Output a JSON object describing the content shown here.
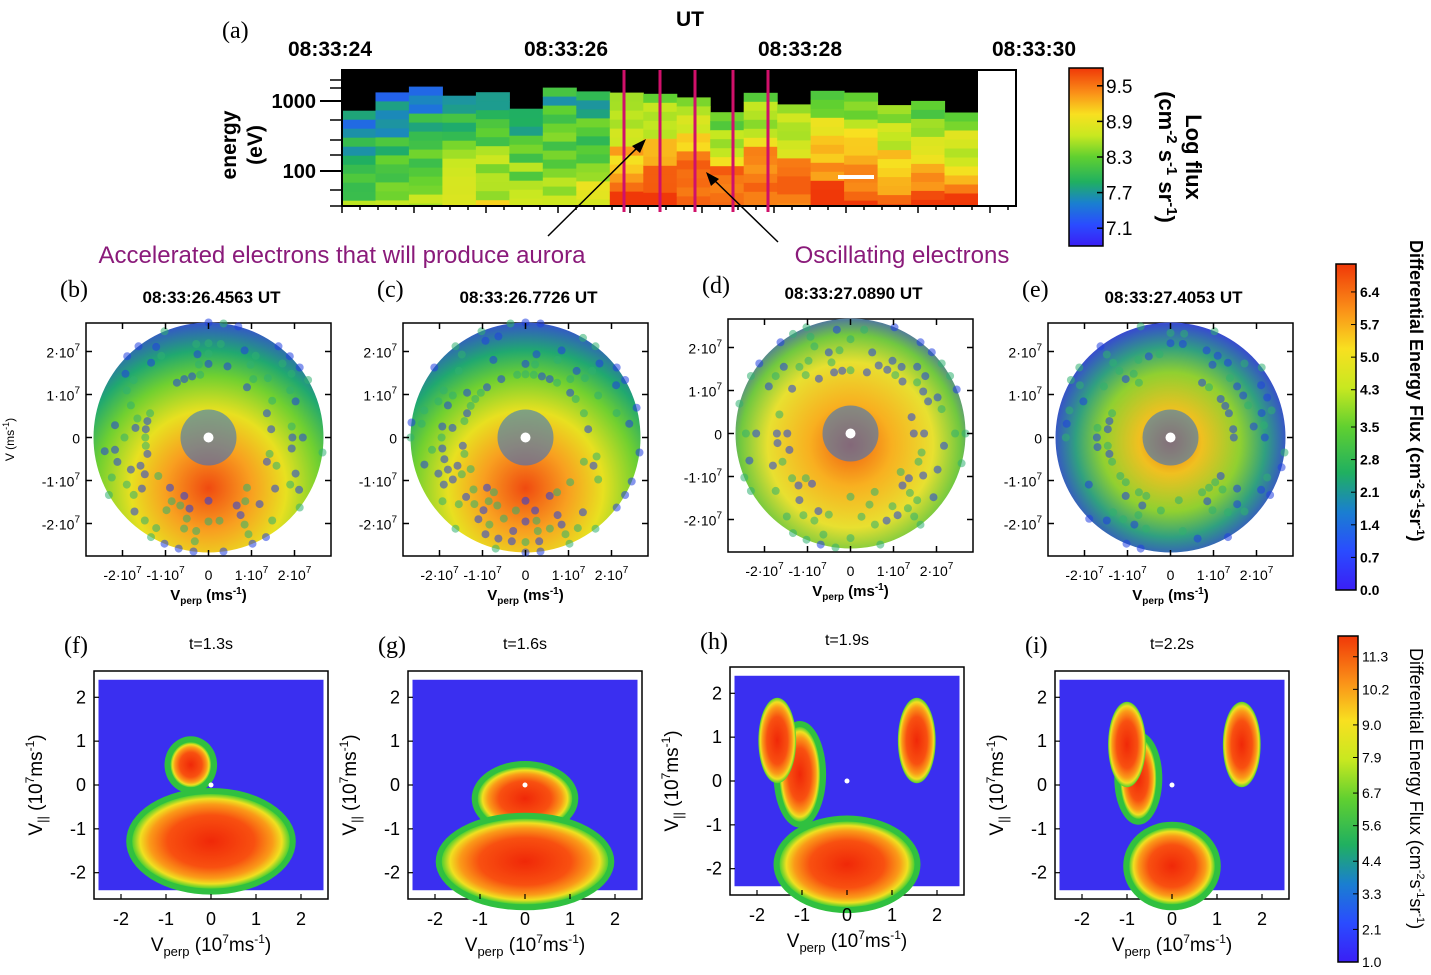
{
  "chart_data": [
    {
      "panel": "(a)",
      "type": "heatmap",
      "x_title": "UT",
      "x_tick_labels": [
        "08:33:24",
        "08:33:26",
        "08:33:28",
        "08:33:30"
      ],
      "ylabel": [
        "energy",
        "(eV)"
      ],
      "y_scale": "log",
      "y_tick_labels": [
        "1000",
        "100"
      ],
      "y_ticks": [
        1000,
        100
      ],
      "colorbar": {
        "title": [
          "Log flux",
          "(cm",
          "-2",
          " s",
          "-1",
          " sr",
          "-1",
          ")"
        ],
        "tick_labels": [
          "9.5",
          "8.9",
          "8.3",
          "7.7",
          "7.1"
        ],
        "range": [
          6.8,
          9.8
        ]
      },
      "marked_times_count": 5,
      "annotations": [
        "Accelerated electrons that will produce aurora",
        "Oscillating electrons"
      ]
    },
    {
      "panels": [
        {
          "label": "(b)",
          "title": "08:33:26.4563 UT"
        },
        {
          "label": "(c)",
          "title": "08:33:26.7726 UT"
        },
        {
          "label": "(d)",
          "title": "08:33:27.0890 UT"
        },
        {
          "label": "(e)",
          "title": "08:33:27.4053 UT"
        }
      ],
      "type": "heatmap",
      "xlabel": "V",
      "xlabel_sub": "perp",
      "xlabel_units": "(ms",
      "xlabel_units_sup": "-1",
      "xlabel_close": ")",
      "ylabel": "V (ms",
      "ylabel_sup": "-1",
      "ylabel_close": ")",
      "x_tick_labels": [
        "-2·10",
        "-1·10",
        "0",
        "1·10",
        "2·10"
      ],
      "x_tick_exp": "7",
      "y_tick_labels": [
        "2·10",
        "1·10",
        "0",
        "-1·10",
        "-2·10"
      ],
      "y_tick_exp": "7",
      "colorbar": {
        "title": "Differential Energy Flux (cm",
        "title_sup": "-2",
        "title_mid": "s",
        "title_sup2": "-1",
        "title_end": "sr",
        "title_sup3": "-1",
        "title_close": ")",
        "tick_labels": [
          "6.4",
          "5.7",
          "5.0",
          "4.3",
          "3.5",
          "2.8",
          "2.1",
          "1.4",
          "0.7",
          "0.0"
        ],
        "range": [
          0,
          7.0
        ]
      }
    },
    {
      "panels": [
        {
          "label": "(f)",
          "title": "t=1.3s"
        },
        {
          "label": "(g)",
          "title": "t=1.6s"
        },
        {
          "label": "(h)",
          "title": "t=1.9s"
        },
        {
          "label": "(i)",
          "title": "t=2.2s"
        }
      ],
      "type": "heatmap",
      "xlabel": "V",
      "xlabel_sub": "perp",
      "xlabel_units": " (10",
      "xlabel_units_sup": "7",
      "xlabel_units_rest": "ms",
      "xlabel_units_sup2": "-1",
      "xlabel_close": ")",
      "ylabel": "V",
      "ylabel_sub": "||",
      "ylabel_units": " (10",
      "ylabel_units_sup": "7",
      "ylabel_units_rest": "ms",
      "ylabel_units_sup2": "-1",
      "ylabel_close": ")",
      "x_ticks": [
        -2,
        -1,
        0,
        1,
        2
      ],
      "y_ticks": [
        2,
        1,
        0,
        -1,
        -2
      ],
      "xlim": [
        -2.6,
        2.6
      ],
      "ylim": [
        -2.6,
        2.6
      ],
      "colorbar": {
        "title": "Differential Energy Flux (cm",
        "title_sup": "-2",
        "title_mid": "s",
        "title_sup2": "-1",
        "title_end": "sr",
        "title_sup3": "-1",
        "title_close": ")",
        "tick_labels": [
          "11.3",
          "10.2",
          "9.0",
          "7.9",
          "6.7",
          "5.6",
          "4.4",
          "3.3",
          "2.1",
          "1.0"
        ],
        "range": [
          1.0,
          12.0
        ]
      }
    }
  ],
  "colors": {
    "accent_lines": "#d0106a",
    "annotation_text": "#8a1a7a",
    "background_panel": "#3a2ff0"
  }
}
